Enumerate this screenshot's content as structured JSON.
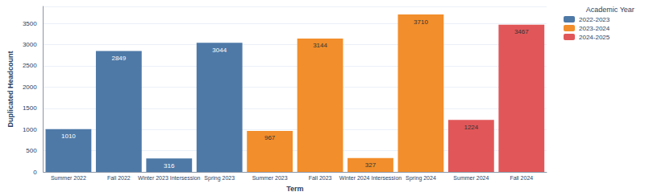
{
  "chart_data": {
    "type": "bar",
    "x_label": "Term",
    "y_label": "Duplicated Headcount",
    "legend_title": "Academic Year",
    "categories": [
      "Summer 2022",
      "Fall 2022",
      "Winter 2023 Intersession",
      "Spring 2023",
      "Summer 2023",
      "Fall 2023",
      "Winter 2024 Intersession",
      "Spring 2024",
      "Summer 2024",
      "Fall 2024"
    ],
    "series": [
      {
        "name": "2022-2023",
        "color": "#4e79a7",
        "values": [
          1010,
          2849,
          316,
          3044,
          null,
          null,
          null,
          null,
          null,
          null
        ]
      },
      {
        "name": "2023-2024",
        "color": "#f28e2b",
        "values": [
          null,
          null,
          null,
          null,
          967,
          3144,
          327,
          3710,
          null,
          null
        ]
      },
      {
        "name": "2024-2025",
        "color": "#e15759",
        "values": [
          null,
          null,
          null,
          null,
          null,
          null,
          null,
          null,
          1224,
          3467
        ]
      }
    ],
    "stacked": true,
    "data_labels": true,
    "ylim": [
      0,
      3900
    ],
    "yticks": [
      0,
      500,
      1000,
      1500,
      2000,
      2500,
      3000,
      3500
    ],
    "grid": true,
    "legend": "top-right"
  }
}
